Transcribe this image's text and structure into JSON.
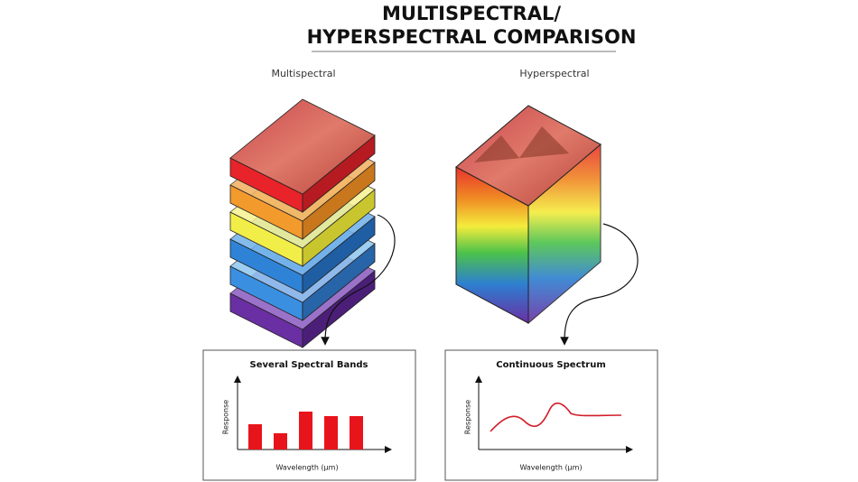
{
  "header": {
    "title_line1": "MULTISPECTRAL/",
    "title_line2": "HYPERSPECTRAL COMPARISON"
  },
  "multispectral": {
    "label": "Multispectral",
    "panel_title": "Several Spectral Bands",
    "y_label": "Response",
    "x_label": "Wavelength (μm)"
  },
  "hyperspectral": {
    "label": "Hyperspectral",
    "panel_title": "Continuous Spectrum",
    "y_label": "Response",
    "x_label": "Wavelength (μm)"
  }
}
